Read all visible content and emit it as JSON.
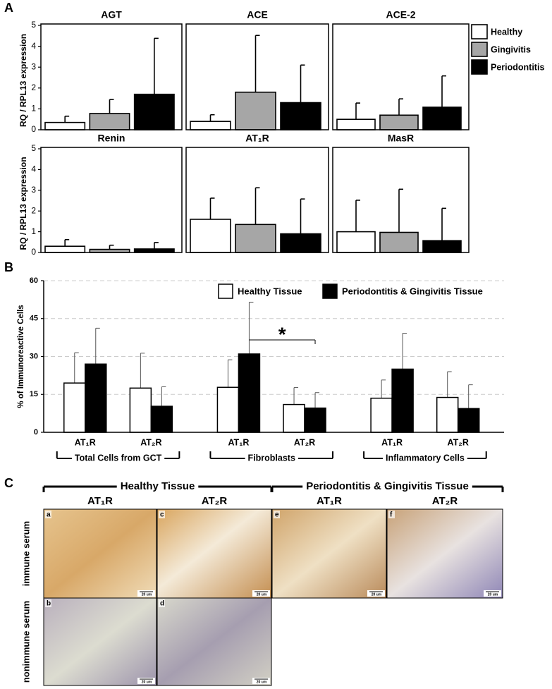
{
  "panel_labels": [
    "A",
    "B",
    "C"
  ],
  "chart_data": [
    {
      "type": "bar",
      "title": "AGT",
      "ylabel": "RQ / RPL13 expression",
      "ylim": [
        0,
        5
      ],
      "yticks": [
        0,
        1,
        2,
        3,
        4,
        5
      ],
      "series": [
        {
          "color": "#ffffff",
          "values": [
            0.35
          ],
          "errors": [
            0.3
          ]
        },
        {
          "color": "#a6a6a6",
          "values": [
            0.78
          ],
          "errors": [
            0.67
          ]
        },
        {
          "color": "#000000",
          "values": [
            1.7
          ],
          "errors": [
            2.68
          ]
        }
      ]
    },
    {
      "type": "bar",
      "title": "ACE",
      "ylim": [
        0,
        5
      ],
      "series": [
        {
          "color": "#ffffff",
          "values": [
            0.4
          ],
          "errors": [
            0.32
          ]
        },
        {
          "color": "#a6a6a6",
          "values": [
            1.8
          ],
          "errors": [
            2.72
          ]
        },
        {
          "color": "#000000",
          "values": [
            1.3
          ],
          "errors": [
            1.8
          ]
        }
      ]
    },
    {
      "type": "bar",
      "title": "ACE-2",
      "ylim": [
        0,
        5
      ],
      "legend": "outside-right",
      "series": [
        {
          "name": "Healthy",
          "color": "#ffffff",
          "values": [
            0.5
          ],
          "errors": [
            0.78
          ]
        },
        {
          "name": "Gingivitis",
          "color": "#a6a6a6",
          "values": [
            0.7
          ],
          "errors": [
            0.78
          ]
        },
        {
          "name": "Periodontitis",
          "color": "#000000",
          "values": [
            1.08
          ],
          "errors": [
            1.5
          ]
        }
      ]
    },
    {
      "type": "bar",
      "title": "Renin",
      "ylabel": "RQ / RPL13 expression",
      "ylim": [
        0,
        5
      ],
      "yticks": [
        0,
        1,
        2,
        3,
        4,
        5
      ],
      "series": [
        {
          "color": "#ffffff",
          "values": [
            0.3
          ],
          "errors": [
            0.32
          ]
        },
        {
          "color": "#a6a6a6",
          "values": [
            0.15
          ],
          "errors": [
            0.2
          ]
        },
        {
          "color": "#000000",
          "values": [
            0.17
          ],
          "errors": [
            0.31
          ]
        }
      ]
    },
    {
      "type": "bar",
      "title": "AT₁R",
      "ylim": [
        0,
        5
      ],
      "series": [
        {
          "color": "#ffffff",
          "values": [
            1.6
          ],
          "errors": [
            1.02
          ]
        },
        {
          "color": "#a6a6a6",
          "values": [
            1.35
          ],
          "errors": [
            1.77
          ]
        },
        {
          "color": "#000000",
          "values": [
            0.9
          ],
          "errors": [
            1.68
          ]
        }
      ]
    },
    {
      "type": "bar",
      "title": "MasR",
      "ylim": [
        0,
        5
      ],
      "series": [
        {
          "color": "#ffffff",
          "values": [
            1.0
          ],
          "errors": [
            1.52
          ]
        },
        {
          "color": "#a6a6a6",
          "values": [
            0.97
          ],
          "errors": [
            2.08
          ]
        },
        {
          "color": "#000000",
          "values": [
            0.57
          ],
          "errors": [
            1.56
          ]
        }
      ]
    },
    {
      "type": "grouped-bar",
      "ylabel": "% of Immunoreactive Cells",
      "ylim": [
        0,
        60
      ],
      "yticks": [
        0,
        15,
        30,
        45,
        60
      ],
      "grid": true,
      "legend": "top-right",
      "categories": [
        "AT₁R",
        "AT₂R",
        "AT₁R",
        "AT₂R",
        "AT₁R",
        "AT₂R"
      ],
      "groups": [
        "Total Cells from GCT",
        "Fibroblasts",
        "Inflammatory Cells"
      ],
      "series": [
        {
          "name": "Healthy Tissue",
          "color": "#ffffff",
          "values": [
            19.5,
            17.5,
            17.8,
            11,
            13.5,
            13.8
          ],
          "errors": [
            12,
            13.8,
            10.9,
            6.7,
            7.2,
            10.2
          ]
        },
        {
          "name": "Periodontitis & Gingivitis Tissue",
          "color": "#000000",
          "values": [
            27,
            10.3,
            31,
            9.6,
            25,
            9.4
          ],
          "errors": [
            14.2,
            7.7,
            20.5,
            6.1,
            14.2,
            9.4
          ]
        }
      ],
      "annotations": [
        {
          "text": "*"
        }
      ]
    }
  ],
  "panel_c": {
    "groups": [
      "Healthy Tissue",
      "Periodontitis & Gingivitis Tissue"
    ],
    "columns": [
      "AT₁R",
      "AT₂R",
      "AT₁R",
      "AT₂R"
    ],
    "rows": [
      "immune serum",
      "nonimmune serum"
    ],
    "tiles": [
      [
        {
          "letter": "a",
          "scale": "20 um"
        },
        {
          "letter": "c",
          "scale": "20 um"
        },
        {
          "letter": "e",
          "scale": "20 um"
        },
        {
          "letter": "f",
          "scale": "20 um"
        }
      ],
      [
        {
          "letter": "b",
          "scale": "20 um"
        },
        {
          "letter": "d",
          "scale": "20 um"
        }
      ]
    ]
  }
}
